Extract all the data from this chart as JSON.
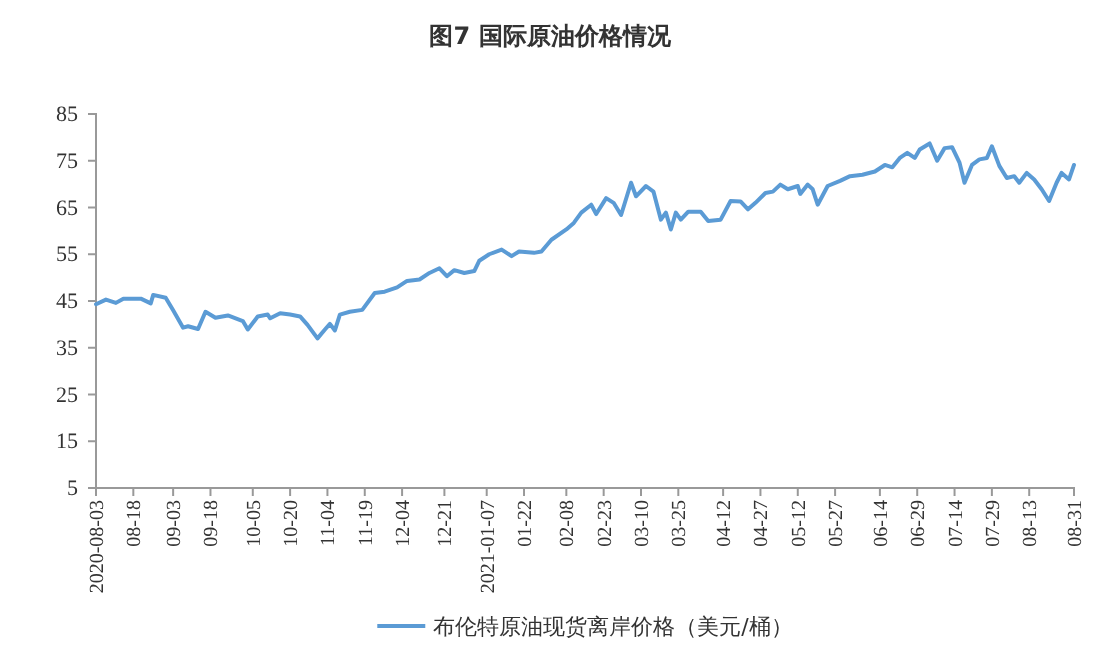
{
  "chart_data": {
    "type": "line",
    "title": "图7  国际原油价格情况",
    "x": [
      "2020-08-03",
      "2020-08-07",
      "2020-08-11",
      "2020-08-14",
      "2020-08-21",
      "2020-08-25",
      "2020-08-26",
      "2020-08-31",
      "2020-09-03",
      "2020-09-07",
      "2020-09-09",
      "2020-09-13",
      "2020-09-16",
      "2020-09-20",
      "2020-09-25",
      "2020-10-01",
      "2020-10-03",
      "2020-10-07",
      "2020-10-11",
      "2020-10-12",
      "2020-10-16",
      "2020-10-20",
      "2020-10-24",
      "2020-10-27",
      "2020-10-31",
      "2020-11-03",
      "2020-11-05",
      "2020-11-07",
      "2020-11-09",
      "2020-11-13",
      "2020-11-18",
      "2020-11-23",
      "2020-11-27",
      "2020-12-02",
      "2020-12-06",
      "2020-12-11",
      "2020-12-15",
      "2020-12-19",
      "2020-12-22",
      "2020-12-25",
      "2020-12-29",
      "2021-01-02",
      "2021-01-04",
      "2021-01-08",
      "2021-01-13",
      "2021-01-17",
      "2021-01-20",
      "2021-01-26",
      "2021-01-29",
      "2021-02-02",
      "2021-02-08",
      "2021-02-11",
      "2021-02-14",
      "2021-02-18",
      "2021-02-20",
      "2021-02-24",
      "2021-02-27",
      "2021-03-02",
      "2021-03-06",
      "2021-03-08",
      "2021-03-12",
      "2021-03-15",
      "2021-03-18",
      "2021-03-20",
      "2021-03-22",
      "2021-03-24",
      "2021-03-26",
      "2021-03-29",
      "2021-04-03",
      "2021-04-06",
      "2021-04-11",
      "2021-04-15",
      "2021-04-19",
      "2021-04-22",
      "2021-04-25",
      "2021-04-29",
      "2021-05-02",
      "2021-05-05",
      "2021-05-08",
      "2021-05-12",
      "2021-05-13",
      "2021-05-16",
      "2021-05-18",
      "2021-05-20",
      "2021-05-24",
      "2021-05-29",
      "2021-06-02",
      "2021-06-07",
      "2021-06-12",
      "2021-06-16",
      "2021-06-19",
      "2021-06-22",
      "2021-06-25",
      "2021-06-28",
      "2021-06-30",
      "2021-07-04",
      "2021-07-07",
      "2021-07-10",
      "2021-07-13",
      "2021-07-16",
      "2021-07-18",
      "2021-07-21",
      "2021-07-24",
      "2021-07-27",
      "2021-07-29",
      "2021-08-01",
      "2021-08-04",
      "2021-08-07",
      "2021-08-09",
      "2021-08-12",
      "2021-08-15",
      "2021-08-18",
      "2021-08-21",
      "2021-08-24",
      "2021-08-26",
      "2021-08-29",
      "2021-08-31"
    ],
    "series": [
      {
        "name": "布伦特原油现货离岸价格（美元/桶）",
        "color": "#5b9bd5",
        "values": [
          44.3,
          45.3,
          44.6,
          45.5,
          45.5,
          44.5,
          46.3,
          45.7,
          43,
          39.3,
          39.6,
          39,
          42.7,
          41.4,
          41.9,
          40.7,
          38.9,
          41.7,
          42.1,
          41.3,
          42.4,
          42.1,
          41.7,
          39.9,
          37,
          38.9,
          40.1,
          38.7,
          42.1,
          42.7,
          43.1,
          46.7,
          47,
          47.9,
          49.3,
          49.6,
          51,
          52,
          50.3,
          51.6,
          51,
          51.4,
          53.6,
          55,
          56,
          54.6,
          55.6,
          55.3,
          55.6,
          58.1,
          60.3,
          61.7,
          63.9,
          65.6,
          63.6,
          67,
          66,
          63.4,
          70.3,
          67.4,
          69.6,
          68.4,
          62.4,
          63.9,
          60.3,
          63.9,
          62.4,
          64.1,
          64.1,
          62.1,
          62.4,
          66.4,
          66.3,
          64.6,
          66,
          68.1,
          68.4,
          69.9,
          68.9,
          69.6,
          67.9,
          69.9,
          68.9,
          65.6,
          69.6,
          70.7,
          71.7,
          72,
          72.7,
          74.1,
          73.6,
          75.6,
          76.7,
          75.6,
          77.4,
          78.7,
          75,
          77.7,
          77.9,
          74.6,
          70.3,
          74.1,
          75.3,
          75.6,
          78.1,
          73.9,
          71.3,
          71.7,
          70.3,
          72.4,
          71,
          68.9,
          66.4,
          70.3,
          72.4,
          71,
          74.1
        ]
      }
    ],
    "xlim": [
      "2020-08-03",
      "2021-08-31"
    ],
    "xticks": [
      {
        "value": "2020-08-03",
        "label": "2020-08-03"
      },
      {
        "value": "2020-08-18",
        "label": "08-18"
      },
      {
        "value": "2020-09-03",
        "label": "09-03"
      },
      {
        "value": "2020-09-18",
        "label": "09-18"
      },
      {
        "value": "2020-10-05",
        "label": "10-05"
      },
      {
        "value": "2020-10-20",
        "label": "10-20"
      },
      {
        "value": "2020-11-04",
        "label": "11-04"
      },
      {
        "value": "2020-11-19",
        "label": "11-19"
      },
      {
        "value": "2020-12-04",
        "label": "12-04"
      },
      {
        "value": "2020-12-21",
        "label": "12-21"
      },
      {
        "value": "2021-01-07",
        "label": "2021-01-07"
      },
      {
        "value": "2021-01-22",
        "label": "01-22"
      },
      {
        "value": "2021-02-08",
        "label": "02-08"
      },
      {
        "value": "2021-02-23",
        "label": "02-23"
      },
      {
        "value": "2021-03-10",
        "label": "03-10"
      },
      {
        "value": "2021-03-25",
        "label": "03-25"
      },
      {
        "value": "2021-04-12",
        "label": "04-12"
      },
      {
        "value": "2021-04-27",
        "label": "04-27"
      },
      {
        "value": "2021-05-12",
        "label": "05-12"
      },
      {
        "value": "2021-05-27",
        "label": "05-27"
      },
      {
        "value": "2021-06-14",
        "label": "06-14"
      },
      {
        "value": "2021-06-29",
        "label": "06-29"
      },
      {
        "value": "2021-07-14",
        "label": "07-14"
      },
      {
        "value": "2021-07-29",
        "label": "07-29"
      },
      {
        "value": "2021-08-13",
        "label": "08-13"
      },
      {
        "value": "2021-08-31",
        "label": "08-31"
      }
    ],
    "ylim": [
      5,
      85
    ],
    "yticks": [
      5,
      15,
      25,
      35,
      45,
      55,
      65,
      75,
      85
    ],
    "legend": "bottom",
    "marker": "none",
    "line_style": "solid"
  }
}
